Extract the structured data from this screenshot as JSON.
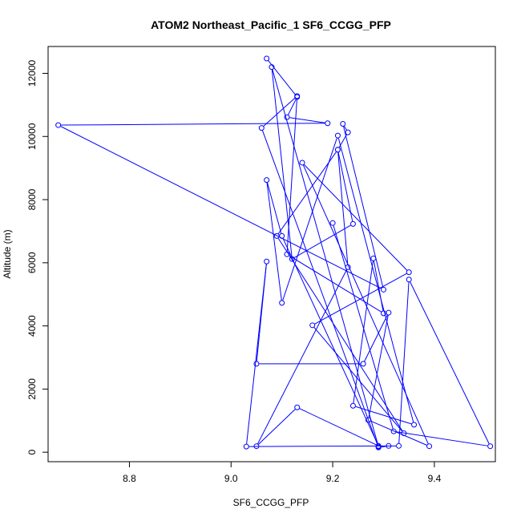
{
  "chart_data": {
    "type": "line",
    "title": "ATOM2 Northeast_Pacific_1 SF6_CCGG_PFP",
    "xlabel": "SF6_CCGG_PFP",
    "ylabel": "Altitude (m)",
    "xlim": [
      8.64,
      9.52
    ],
    "ylim": [
      -300,
      12850
    ],
    "xticks": [
      8.8,
      9.0,
      9.2,
      9.4
    ],
    "xtick_labels": [
      "8.8",
      "9.0",
      "9.2",
      "9.4"
    ],
    "yticks": [
      0,
      2000,
      4000,
      6000,
      8000,
      10000,
      12000
    ],
    "ytick_labels": [
      "0",
      "2000",
      "4000",
      "6000",
      "8000",
      "10000",
      "12000"
    ],
    "grid": false,
    "colors": {
      "series": "#0000ff",
      "axis": "#000000"
    },
    "markers": "open-circle",
    "series": [
      {
        "points": [
          [
            9.07,
            12470
          ],
          [
            9.13,
            11250
          ],
          [
            9.11,
            10610
          ],
          [
            9.19,
            10420
          ],
          [
            8.66,
            10360
          ],
          [
            9.3,
            5150
          ],
          [
            9.22,
            10400
          ],
          [
            9.23,
            10130
          ],
          [
            9.21,
            9580
          ],
          [
            9.24,
            7230
          ],
          [
            9.12,
            6120
          ],
          [
            9.08,
            12200
          ],
          [
            9.29,
            180
          ],
          [
            9.31,
            200
          ],
          [
            9.29,
            150
          ],
          [
            9.06,
            10270
          ],
          [
            9.13,
            11280
          ],
          [
            9.11,
            6270
          ],
          [
            9.3,
            4400
          ],
          [
            9.28,
            6140
          ],
          [
            9.24,
            1470
          ],
          [
            9.36,
            870
          ],
          [
            9.21,
            10030
          ],
          [
            9.1,
            4730
          ],
          [
            9.07,
            8620
          ],
          [
            9.1,
            6850
          ],
          [
            9.29,
            200
          ],
          [
            9.13,
            1420
          ],
          [
            9.05,
            190
          ],
          [
            9.23,
            5860
          ],
          [
            9.21,
            9580
          ],
          [
            9.09,
            6850
          ],
          [
            9.34,
            600
          ],
          [
            9.16,
            4020
          ],
          [
            9.35,
            5700
          ],
          [
            9.14,
            9170
          ],
          [
            9.39,
            190
          ],
          [
            9.27,
            1020
          ],
          [
            9.31,
            4420
          ],
          [
            9.26,
            2800
          ],
          [
            9.05,
            2800
          ],
          [
            9.07,
            6040
          ],
          [
            9.03,
            180
          ],
          [
            9.33,
            200
          ],
          [
            9.35,
            5470
          ],
          [
            9.51,
            190
          ],
          [
            9.32,
            660
          ],
          [
            9.2,
            7260
          ]
        ]
      }
    ]
  }
}
